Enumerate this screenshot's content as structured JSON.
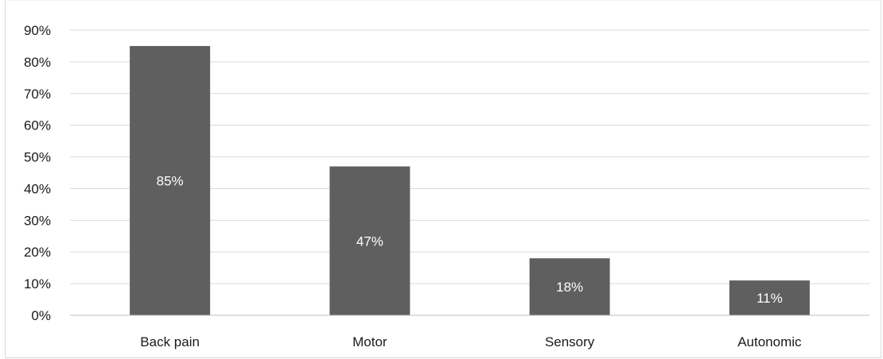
{
  "chart_data": {
    "type": "bar",
    "categories": [
      "Back pain",
      "Motor",
      "Sensory",
      "Autonomic"
    ],
    "values": [
      85,
      47,
      18,
      11
    ],
    "data_labels": [
      "85%",
      "47%",
      "18%",
      "11%"
    ],
    "y_tick_labels": [
      "0%",
      "10%",
      "20%",
      "30%",
      "40%",
      "50%",
      "60%",
      "70%",
      "80%",
      "90%"
    ],
    "ylim": [
      0,
      90
    ],
    "y_step": 10,
    "grid": true,
    "legend": "none",
    "bar_color": "#5f5f5f",
    "title": "",
    "xlabel": "",
    "ylabel": ""
  }
}
